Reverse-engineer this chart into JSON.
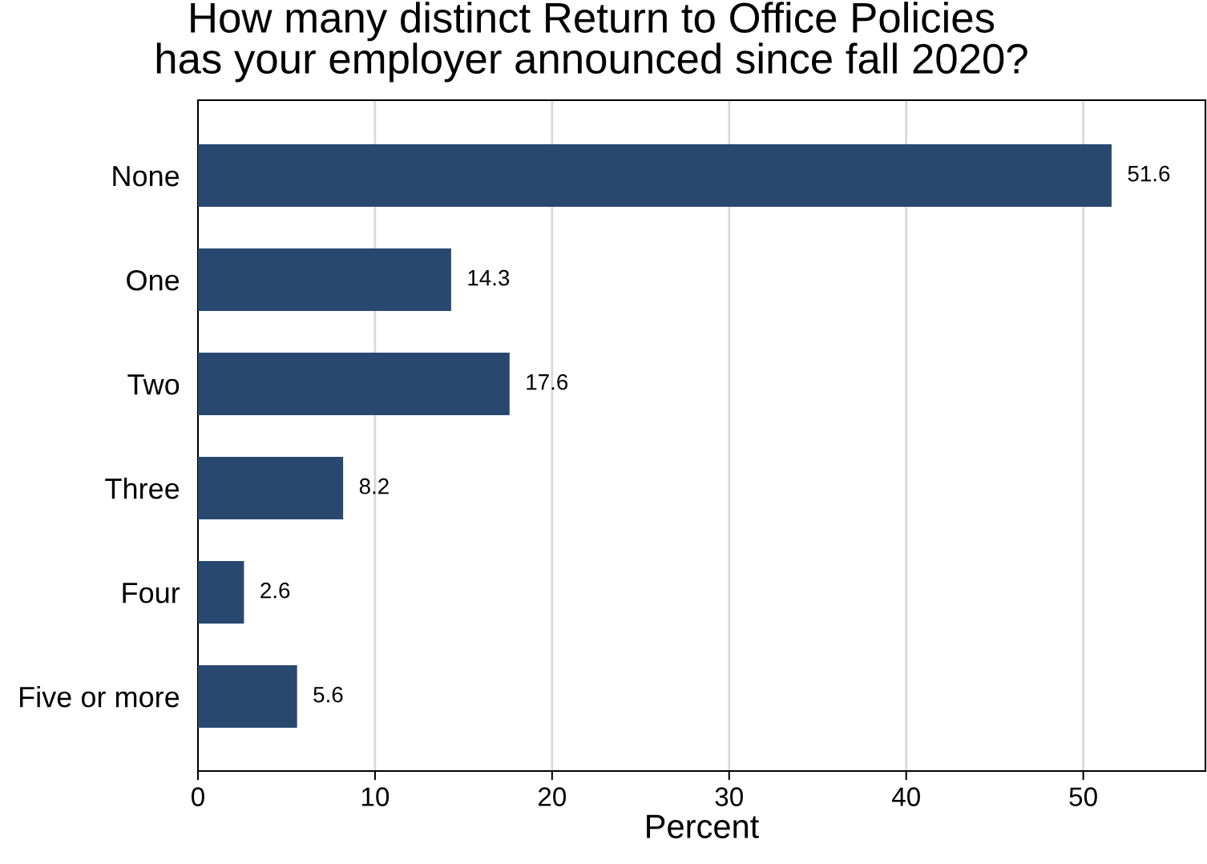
{
  "chart_data": {
    "type": "bar",
    "orientation": "horizontal",
    "title": "How many distinct Return to Office Policies\nhas your employer announced since fall 2020?",
    "xlabel": "Percent",
    "categories": [
      "None",
      "One",
      "Two",
      "Three",
      "Four",
      "Five or more"
    ],
    "values": [
      51.6,
      14.3,
      17.6,
      8.2,
      2.6,
      5.6
    ],
    "color": "#294870",
    "xlim": [
      0,
      56.9
    ],
    "xticks": [
      0,
      10,
      20,
      30,
      40,
      50
    ],
    "grid": "x",
    "data_labels": true
  }
}
